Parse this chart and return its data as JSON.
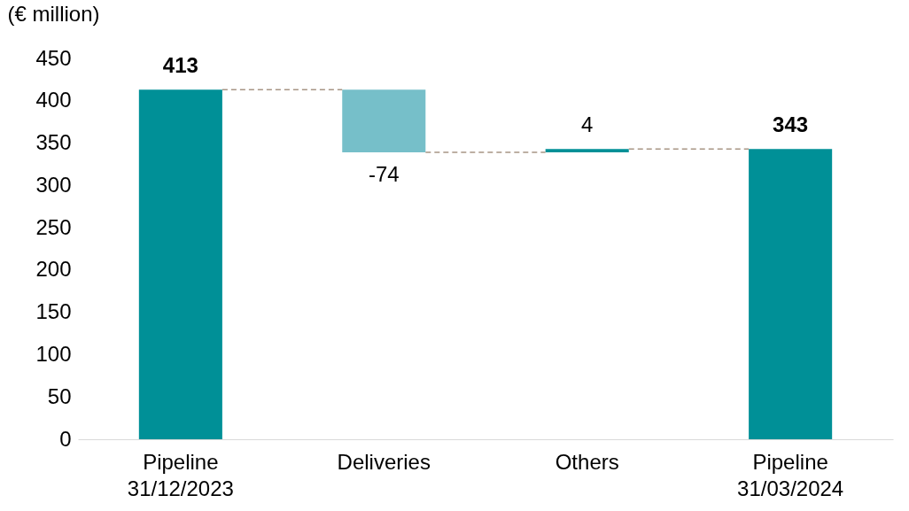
{
  "chart_data": {
    "type": "bar",
    "ylabel": "(€ million)",
    "categories": [
      "Pipeline\n31/12/2023",
      "Deliveries",
      "Others",
      "Pipeline\n31/03/2024"
    ],
    "base": [
      0,
      413,
      339,
      0
    ],
    "values": [
      413,
      -74,
      4,
      343
    ],
    "colors": [
      "#009097",
      "#76bfc9",
      "#009097",
      "#009097"
    ],
    "value_labels": [
      "413",
      "-74",
      "4",
      "343"
    ],
    "ylim": [
      0,
      450
    ],
    "yticks": [
      0,
      50,
      100,
      150,
      200,
      250,
      300,
      350,
      400,
      450
    ],
    "grid": false
  }
}
